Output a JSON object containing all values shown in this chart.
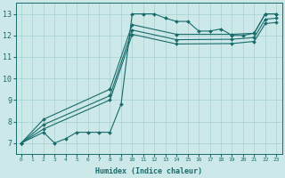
{
  "xlabel": "Humidex (Indice chaleur)",
  "xlim": [
    -0.5,
    23.5
  ],
  "ylim": [
    6.5,
    13.5
  ],
  "xticks": [
    0,
    1,
    2,
    3,
    4,
    5,
    6,
    7,
    8,
    9,
    10,
    11,
    12,
    13,
    14,
    15,
    16,
    17,
    18,
    19,
    20,
    21,
    22,
    23
  ],
  "yticks": [
    7,
    8,
    9,
    10,
    11,
    12,
    13
  ],
  "bg_color": "#cce8e8",
  "line_color": "#1a6b6b",
  "grid_color": "#a8d0d0",
  "lines": [
    {
      "x": [
        0,
        2,
        3,
        4,
        5,
        6,
        7,
        8,
        9,
        10,
        11,
        12,
        13,
        14,
        15,
        16,
        17,
        18,
        19,
        20,
        21,
        22,
        23
      ],
      "y": [
        7,
        7.5,
        7.0,
        7.2,
        7.5,
        7.5,
        7.5,
        7.5,
        8.8,
        13.0,
        13.0,
        13.0,
        12.8,
        12.65,
        12.65,
        12.2,
        12.2,
        12.3,
        12.0,
        12.0,
        12.1,
        13.0,
        13.0
      ]
    },
    {
      "x": [
        0,
        2,
        8,
        10,
        14,
        19,
        21,
        22,
        23
      ],
      "y": [
        7,
        8.1,
        9.5,
        12.5,
        12.05,
        12.05,
        12.1,
        13.0,
        13.0
      ]
    },
    {
      "x": [
        0,
        2,
        8,
        10,
        14,
        19,
        21,
        22,
        23
      ],
      "y": [
        7,
        7.85,
        9.2,
        12.25,
        11.8,
        11.82,
        11.9,
        12.75,
        12.8
      ]
    },
    {
      "x": [
        0,
        2,
        8,
        10,
        14,
        19,
        21,
        22,
        23
      ],
      "y": [
        7,
        7.65,
        9.0,
        12.05,
        11.6,
        11.62,
        11.72,
        12.55,
        12.6
      ]
    }
  ]
}
